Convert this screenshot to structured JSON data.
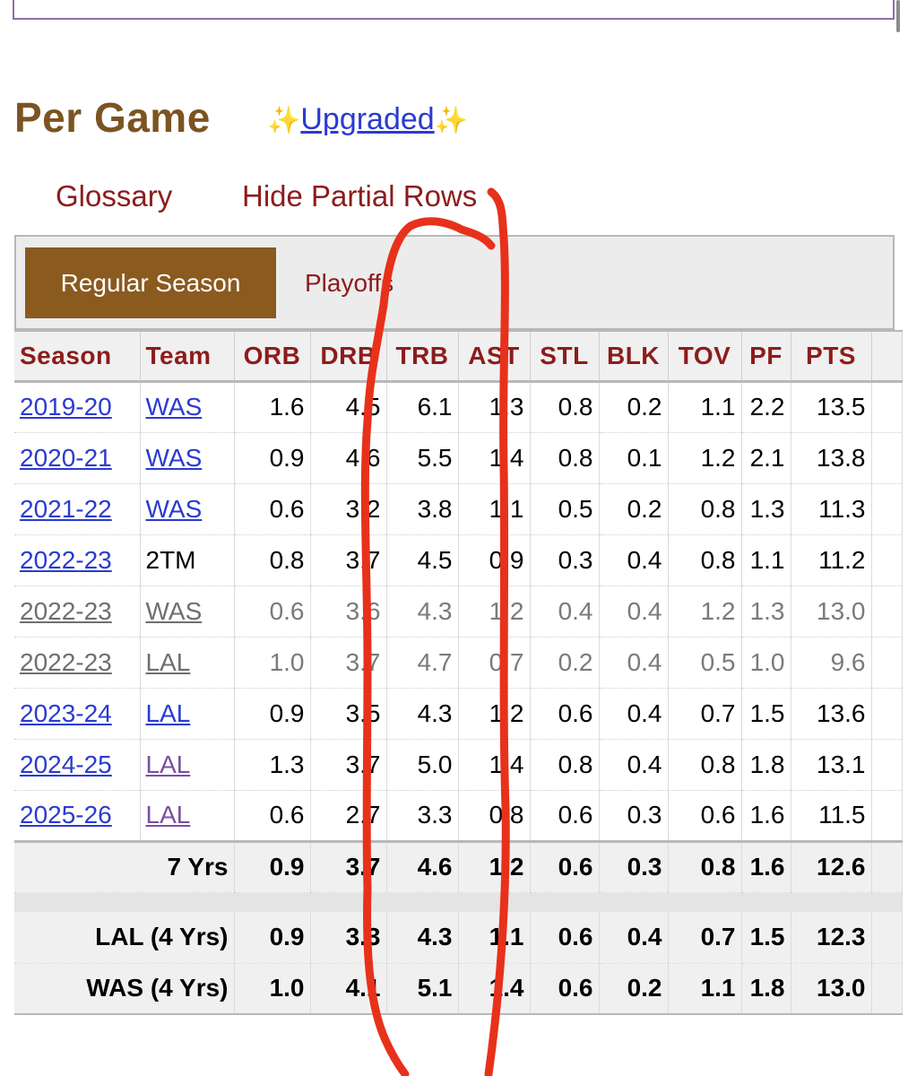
{
  "header": {
    "title": "Per Game",
    "sparkle": "✨",
    "upgraded_label": "Upgraded"
  },
  "links": {
    "glossary": "Glossary",
    "hide_partial": "Hide Partial Rows"
  },
  "tabs": [
    {
      "label": "Regular Season",
      "active": true
    },
    {
      "label": "Playoffs",
      "active": false
    }
  ],
  "columns": [
    "Season",
    "Team",
    "ORB",
    "DRB",
    "TRB",
    "AST",
    "STL",
    "BLK",
    "TOV",
    "PF",
    "PTS"
  ],
  "rows": [
    {
      "season": "2019-20",
      "team": "WAS",
      "team_link": true,
      "partial": false,
      "stats": [
        "1.6",
        "4.5",
        "6.1",
        "1.3",
        "0.8",
        "0.2",
        "1.1",
        "2.2",
        "13.5"
      ]
    },
    {
      "season": "2020-21",
      "team": "WAS",
      "team_link": true,
      "partial": false,
      "stats": [
        "0.9",
        "4.6",
        "5.5",
        "1.4",
        "0.8",
        "0.1",
        "1.2",
        "2.1",
        "13.8"
      ]
    },
    {
      "season": "2021-22",
      "team": "WAS",
      "team_link": true,
      "partial": false,
      "stats": [
        "0.6",
        "3.2",
        "3.8",
        "1.1",
        "0.5",
        "0.2",
        "0.8",
        "1.3",
        "11.3"
      ]
    },
    {
      "season": "2022-23",
      "team": "2TM",
      "team_link": false,
      "partial": false,
      "stats": [
        "0.8",
        "3.7",
        "4.5",
        "0.9",
        "0.3",
        "0.4",
        "0.8",
        "1.1",
        "11.2"
      ]
    },
    {
      "season": "2022-23",
      "team": "WAS",
      "team_link": true,
      "partial": true,
      "stats": [
        "0.6",
        "3.6",
        "4.3",
        "1.2",
        "0.4",
        "0.4",
        "1.2",
        "1.3",
        "13.0"
      ]
    },
    {
      "season": "2022-23",
      "team": "LAL",
      "team_link": true,
      "partial": true,
      "stats": [
        "1.0",
        "3.7",
        "4.7",
        "0.7",
        "0.2",
        "0.4",
        "0.5",
        "1.0",
        "9.6"
      ]
    },
    {
      "season": "2023-24",
      "team": "LAL",
      "team_link": true,
      "partial": false,
      "stats": [
        "0.9",
        "3.5",
        "4.3",
        "1.2",
        "0.6",
        "0.4",
        "0.7",
        "1.5",
        "13.6"
      ]
    },
    {
      "season": "2024-25",
      "team": "LAL",
      "team_link": true,
      "visited": true,
      "partial": false,
      "stats": [
        "1.3",
        "3.7",
        "5.0",
        "1.4",
        "0.8",
        "0.4",
        "0.8",
        "1.8",
        "13.1"
      ]
    },
    {
      "season": "2025-26",
      "team": "LAL",
      "team_link": true,
      "visited": true,
      "partial": false,
      "stats": [
        "0.6",
        "2.7",
        "3.3",
        "0.8",
        "0.6",
        "0.3",
        "0.6",
        "1.6",
        "11.5"
      ]
    }
  ],
  "career": {
    "label": "7 Yrs",
    "stats": [
      "0.9",
      "3.7",
      "4.6",
      "1.2",
      "0.6",
      "0.3",
      "0.8",
      "1.6",
      "12.6"
    ]
  },
  "team_totals": [
    {
      "label": "LAL (4 Yrs)",
      "stats": [
        "0.9",
        "3.3",
        "4.3",
        "1.1",
        "0.6",
        "0.4",
        "0.7",
        "1.5",
        "12.3"
      ]
    },
    {
      "label": "WAS (4 Yrs)",
      "stats": [
        "1.0",
        "4.1",
        "5.1",
        "1.4",
        "0.6",
        "0.2",
        "1.1",
        "1.8",
        "13.0"
      ]
    }
  ],
  "annotation_color": "#e8311a"
}
